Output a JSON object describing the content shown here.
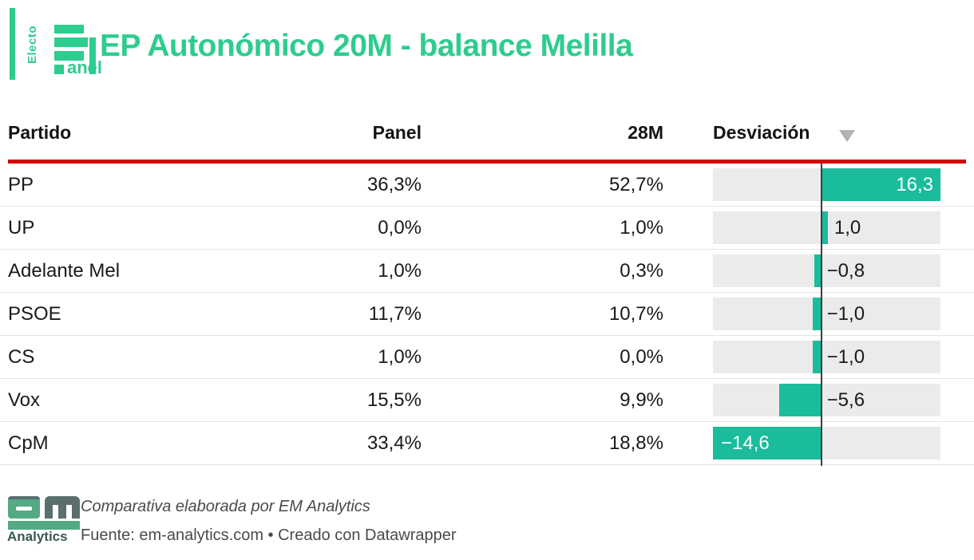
{
  "header": {
    "logo": {
      "vertical_text": "Electo",
      "suffix_text": "anel"
    },
    "title": "EP Autonómico 20M - balance Melilla"
  },
  "table": {
    "headers": {
      "partido": "Partido",
      "panel": "Panel",
      "m28": "28M",
      "desviacion": "Desviación"
    },
    "sort_icon": "▼",
    "bar_scale": {
      "min": -14.6,
      "max": 16.3
    },
    "rows": [
      {
        "partido": "PP",
        "panel": "36,3%",
        "m28": "52,7%",
        "desviacion": 16.3,
        "desviacion_label": "16,3"
      },
      {
        "partido": "UP",
        "panel": "0,0%",
        "m28": "1,0%",
        "desviacion": 1.0,
        "desviacion_label": "1,0"
      },
      {
        "partido": "Adelante Mel",
        "panel": "1,0%",
        "m28": "0,3%",
        "desviacion": -0.8,
        "desviacion_label": "−0,8"
      },
      {
        "partido": "PSOE",
        "panel": "11,7%",
        "m28": "10,7%",
        "desviacion": -1.0,
        "desviacion_label": "−1,0"
      },
      {
        "partido": "CS",
        "panel": "1,0%",
        "m28": "0,0%",
        "desviacion": -1.0,
        "desviacion_label": "−1,0"
      },
      {
        "partido": "Vox",
        "panel": "15,5%",
        "m28": "9,9%",
        "desviacion": -5.6,
        "desviacion_label": "−5,6"
      },
      {
        "partido": "CpM",
        "panel": "33,4%",
        "m28": "18,8%",
        "desviacion": -14.6,
        "desviacion_label": "−14,6"
      }
    ]
  },
  "footer": {
    "logo_label": "Analytics",
    "credit": "Comparativa elaborada por EM Analytics",
    "source": "Fuente: em-analytics.com • Creado con Datawrapper"
  },
  "colors": {
    "accent_green": "#2ecc8e",
    "bar_green": "#1bbc9b",
    "red_rule": "#d40000",
    "track_gray": "#ebebeb",
    "axis_gray": "#3c3c3c",
    "footer_logo_green": "#53aa85",
    "footer_logo_slate": "#5b6e6e"
  },
  "chart_data": {
    "type": "table",
    "title": "EP Autonómico 20M - balance Melilla",
    "columns": [
      "Partido",
      "Panel",
      "28M",
      "Desviación"
    ],
    "rows": [
      {
        "partido": "PP",
        "panel_pct": 36.3,
        "m28_pct": 52.7,
        "desviacion": 16.3
      },
      {
        "partido": "UP",
        "panel_pct": 0.0,
        "m28_pct": 1.0,
        "desviacion": 1.0
      },
      {
        "partido": "Adelante Mel",
        "panel_pct": 1.0,
        "m28_pct": 0.3,
        "desviacion": -0.8
      },
      {
        "partido": "PSOE",
        "panel_pct": 11.7,
        "m28_pct": 10.7,
        "desviacion": -1.0
      },
      {
        "partido": "CS",
        "panel_pct": 1.0,
        "m28_pct": 0.0,
        "desviacion": -1.0
      },
      {
        "partido": "Vox",
        "panel_pct": 15.5,
        "m28_pct": 9.9,
        "desviacion": -5.6
      },
      {
        "partido": "CpM",
        "panel_pct": 33.4,
        "m28_pct": 18.8,
        "desviacion": -14.6
      }
    ],
    "bar_axis_range": [
      -14.6,
      16.3
    ],
    "legend_position": "none",
    "sorted_by": "Desviación descending"
  }
}
